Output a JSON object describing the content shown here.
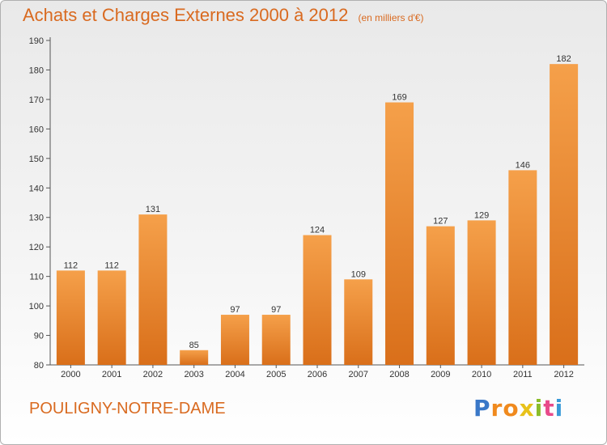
{
  "header": {
    "title": "Achats et Charges Externes 2000 à 2012",
    "subtitle": "(en milliers d'€)"
  },
  "footer": {
    "town": "POULIGNY-NOTRE-DAME",
    "logo": "Proxiti"
  },
  "colors": {
    "accent": "#d96a20",
    "bar_top": "#f5a04a",
    "bar_bottom": "#d96f1a",
    "logo_letters": [
      "#3a78c8",
      "#f08a1e",
      "#f08a1e",
      "#e8c21a",
      "#8bbd2a",
      "#e84a8a",
      "#3a9ad8"
    ]
  },
  "chart_data": {
    "type": "bar",
    "categories": [
      "2000",
      "2001",
      "2002",
      "2003",
      "2004",
      "2005",
      "2006",
      "2007",
      "2008",
      "2009",
      "2010",
      "2011",
      "2012"
    ],
    "values": [
      112,
      112,
      131,
      85,
      97,
      97,
      124,
      109,
      169,
      127,
      129,
      146,
      182
    ],
    "ylim": [
      80,
      190
    ],
    "yticks": [
      80,
      90,
      100,
      110,
      120,
      130,
      140,
      150,
      160,
      170,
      180,
      190
    ],
    "grid": false,
    "show_value_labels": true
  }
}
